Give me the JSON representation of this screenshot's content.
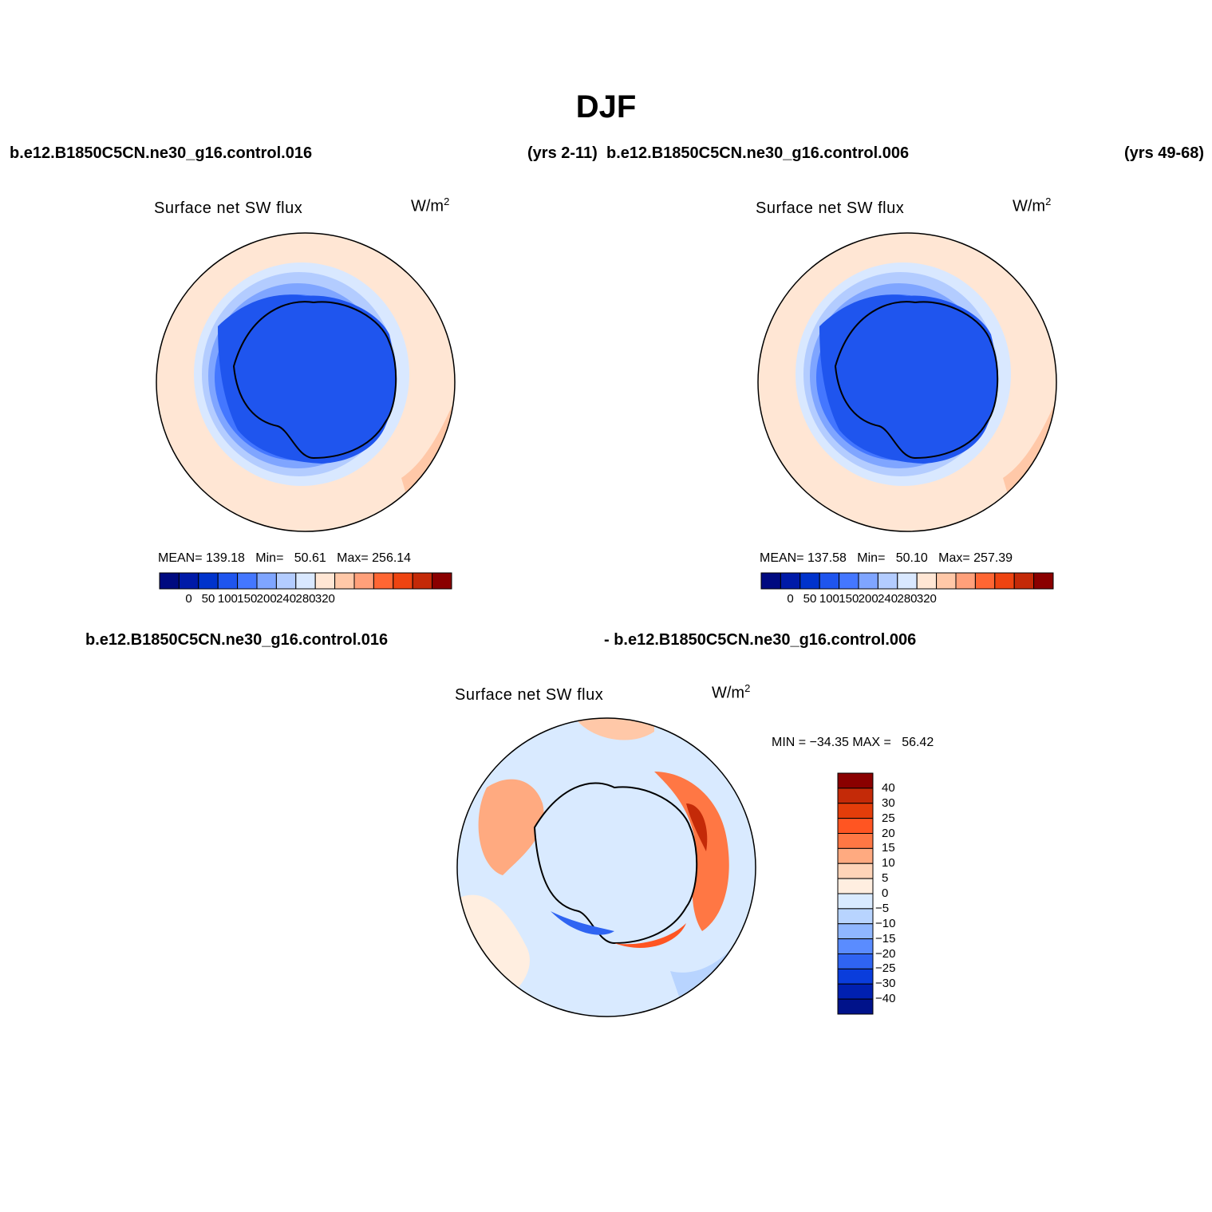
{
  "title": "DJF",
  "header": {
    "case_left": "b.e12.B1850C5CN.ne30_g16.control.016",
    "years_left": "(yrs 2-11)",
    "case_right": "b.e12.B1850C5CN.ne30_g16.control.006",
    "years_right": "(yrs 49-68)"
  },
  "diff_header": {
    "case_left": "b.e12.B1850C5CN.ne30_g16.control.016",
    "case_right": "- b.e12.B1850C5CN.ne30_g16.control.006"
  },
  "panels": [
    {
      "title": "Surface net SW flux",
      "units_base": "W/m",
      "units_exp": "2",
      "stats": "MEAN= 139.18   Min=   50.61   Max= 256.14"
    },
    {
      "title": "Surface net SW flux",
      "units_base": "W/m",
      "units_exp": "2",
      "stats": "MEAN= 137.58   Min=   50.10   Max= 257.39"
    },
    {
      "title": "Surface net SW flux",
      "units_base": "W/m",
      "units_exp": "2",
      "stats": "MIN = −34.35 MAX =   56.42"
    }
  ],
  "colorbar_main": {
    "colors": [
      "#000a80",
      "#001aa8",
      "#0033cc",
      "#1f55ee",
      "#4477ff",
      "#7fa5ff",
      "#b3ccff",
      "#d9e8ff",
      "#ffe6d4",
      "#ffc8a8",
      "#ffa07a",
      "#ff6633",
      "#ee4411",
      "#c42a08",
      "#8a0000"
    ],
    "tick_labels": [
      "0",
      "50",
      "100",
      "150",
      "200",
      "240",
      "280",
      "320"
    ]
  },
  "colorbar_diff": {
    "colors": [
      "#8a0000",
      "#c42a08",
      "#e43d0a",
      "#ff5522",
      "#ff7744",
      "#ffaa80",
      "#ffd4b8",
      "#ffeee0",
      "#d9eaff",
      "#b8d4ff",
      "#8fb6ff",
      "#5a8cff",
      "#2f64f2",
      "#0a3ddc",
      "#0020b0",
      "#00128a"
    ],
    "tick_labels": [
      "40",
      "30",
      "25",
      "20",
      "15",
      "10",
      "5",
      "0",
      "−5",
      "−10",
      "−15",
      "−20",
      "−25",
      "−30",
      "−40"
    ]
  }
}
